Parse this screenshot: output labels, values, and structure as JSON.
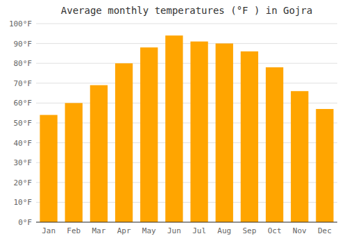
{
  "chart_data": {
    "type": "bar",
    "title": "Average monthly temperatures (°F ) in Gojra",
    "categories": [
      "Jan",
      "Feb",
      "Mar",
      "Apr",
      "May",
      "Jun",
      "Jul",
      "Aug",
      "Sep",
      "Oct",
      "Nov",
      "Dec"
    ],
    "values": [
      54,
      60,
      69,
      80,
      88,
      94,
      91,
      90,
      86,
      78,
      66,
      57
    ],
    "color": "#FFA500",
    "ylim": [
      0,
      100
    ],
    "yticks": [
      {
        "value": 0,
        "label": "0°F"
      },
      {
        "value": 10,
        "label": "10°F"
      },
      {
        "value": 20,
        "label": "20°F"
      },
      {
        "value": 30,
        "label": "30°F"
      },
      {
        "value": 40,
        "label": "40°F"
      },
      {
        "value": 50,
        "label": "50°F"
      },
      {
        "value": 60,
        "label": "60°F"
      },
      {
        "value": 70,
        "label": "70°F"
      },
      {
        "value": 80,
        "label": "80°F"
      },
      {
        "value": 90,
        "label": "90°F"
      },
      {
        "value": 100,
        "label": "100°F"
      }
    ],
    "grid": true
  }
}
